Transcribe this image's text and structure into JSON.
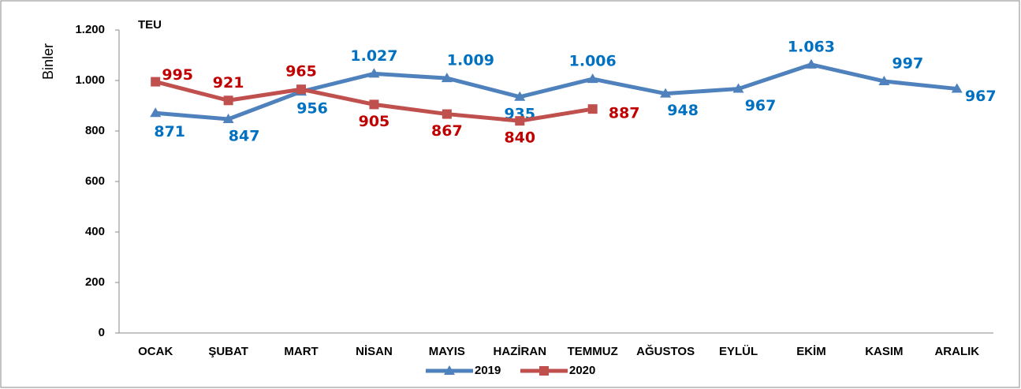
{
  "chart_data": {
    "type": "line",
    "annotation": "TEU",
    "y_label": "Binler",
    "categories": [
      "OCAK",
      "ŞUBAT",
      "MART",
      "NİSAN",
      "MAYIS",
      "HAZİRAN",
      "TEMMUZ",
      "AĞUSTOS",
      "EYLÜL",
      "EKİM",
      "KASIM",
      "ARALIK"
    ],
    "series": [
      {
        "name": "2019",
        "color": "#4f81bd",
        "marker": "triangle",
        "values": [
          871,
          847,
          956,
          1027,
          1009,
          935,
          1006,
          948,
          967,
          1063,
          997,
          967
        ],
        "value_labels": [
          "871",
          "847",
          "956",
          "1.027",
          "1.009",
          "935",
          "1.006",
          "948",
          "967",
          "1.063",
          "997",
          "967"
        ]
      },
      {
        "name": "2020",
        "color": "#c0504d",
        "marker": "square",
        "values": [
          995,
          921,
          965,
          905,
          867,
          840,
          887,
          null,
          null,
          null,
          null,
          null
        ],
        "value_labels": [
          "995",
          "921",
          "965",
          "905",
          "867",
          "840",
          "887",
          null,
          null,
          null,
          null,
          null
        ]
      }
    ],
    "ylim": [
      0,
      1200
    ],
    "yticks": [
      0,
      200,
      400,
      600,
      800,
      {
        "value": 1000,
        "label": "1.000"
      },
      {
        "value": 1200,
        "label": "1.200"
      }
    ],
    "grid": false,
    "legend": "bottom"
  }
}
